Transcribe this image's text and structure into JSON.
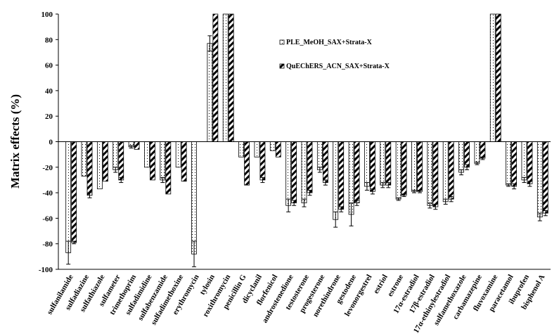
{
  "chart_data": {
    "type": "bar",
    "ylabel": "Matrix effects (%)",
    "xlabel": "",
    "ylim": [
      -100,
      100
    ],
    "yticks": [
      -100,
      -80,
      -60,
      -40,
      -20,
      0,
      20,
      40,
      60,
      80,
      100
    ],
    "legend_position": "top-center",
    "grid": false,
    "categories": [
      "sulfanilamide",
      "sulfadiazine",
      "sulfathiazole",
      "sulfameter",
      "trimethoprim",
      "sulfadimidine",
      "sulfabenzamide",
      "sulfadimethoxine",
      "erythromycin",
      "tylosin",
      "roxithromycin",
      "penicillin G",
      "dicyclanil",
      "florfenicol",
      "androstenedione",
      "testosterone",
      "progesterone",
      "norethindrone",
      "gestodene",
      "levonorgestrel",
      "estriol",
      "estrone",
      "17α-estradiol",
      "17β-estradiol",
      "17α-ethinylestradiol",
      "sulfamethoxazole",
      "carbamazepine",
      "fluvoxamine",
      "paracetamol",
      "ibuprofen",
      "bisphenol A"
    ],
    "series": [
      {
        "name": "PLE_MeOH_SAX+Strata-X",
        "pattern": "dots",
        "values": [
          -87,
          -27,
          -37,
          -22,
          -4,
          -20,
          -30,
          -20,
          -88,
          77,
          100,
          -12,
          -12,
          -7,
          -50,
          -48,
          -22,
          -61,
          -57,
          -35,
          -34,
          -45,
          -39,
          -50,
          -47,
          -24,
          -17,
          100,
          -34,
          -30,
          -59
        ],
        "errors": [
          9,
          0,
          0,
          2,
          1,
          0,
          2,
          0,
          10,
          6,
          0,
          0,
          0,
          0,
          5,
          3,
          2,
          6,
          9,
          3,
          2,
          1,
          1,
          2,
          2,
          2,
          1,
          0,
          1,
          2,
          3
        ]
      },
      {
        "name": "QuEChERS_ACN_SAX+Strata-X",
        "pattern": "diagonal",
        "values": [
          -79,
          -42,
          -31,
          -30,
          -6,
          -30,
          -41,
          -31,
          0,
          100,
          100,
          -34,
          -30,
          -12,
          -48,
          -40,
          -32,
          -53,
          -48,
          -39,
          -34,
          -42,
          -39,
          -51,
          -45,
          -20,
          -13,
          100,
          -35,
          -33,
          -56
        ],
        "errors": [
          1,
          2,
          0,
          2,
          0,
          0,
          0,
          0,
          0,
          0,
          0,
          0,
          2,
          0,
          2,
          2,
          2,
          2,
          2,
          2,
          2,
          1,
          1,
          2,
          2,
          2,
          1,
          0,
          2,
          2,
          2
        ]
      }
    ]
  }
}
